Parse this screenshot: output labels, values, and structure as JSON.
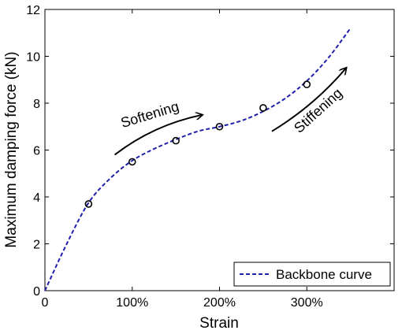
{
  "chart_data": {
    "type": "line",
    "title": "",
    "xlabel": "Strain",
    "ylabel": "Maximum damping force (kN)",
    "xlim": [
      0,
      4.0
    ],
    "ylim": [
      0,
      12
    ],
    "grid": false,
    "x_ticks": [
      {
        "value": 0,
        "label": "0"
      },
      {
        "value": 1,
        "label": "100%"
      },
      {
        "value": 2,
        "label": "200%"
      },
      {
        "value": 3,
        "label": "300%"
      }
    ],
    "y_ticks": [
      {
        "value": 0,
        "label": "0"
      },
      {
        "value": 2,
        "label": "2"
      },
      {
        "value": 4,
        "label": "4"
      },
      {
        "value": 6,
        "label": "6"
      },
      {
        "value": 8,
        "label": "8"
      },
      {
        "value": 10,
        "label": "10"
      },
      {
        "value": 12,
        "label": "12"
      }
    ],
    "series": [
      {
        "name": "Backbone curve",
        "style": "dashed",
        "color": "#1f1fa8",
        "x": [
          0,
          0.25,
          0.5,
          0.75,
          1.0,
          1.25,
          1.5,
          1.75,
          2.0,
          2.25,
          2.5,
          2.75,
          3.0,
          3.25,
          3.5
        ],
        "y": [
          0,
          2.0,
          3.75,
          4.8,
          5.55,
          6.05,
          6.45,
          6.8,
          7.0,
          7.25,
          7.65,
          8.2,
          8.95,
          9.95,
          11.2
        ]
      },
      {
        "name": "",
        "style": "markers",
        "marker": "circle",
        "color": "#000000",
        "x": [
          0.5,
          1.0,
          1.5,
          2.0,
          2.5,
          3.0
        ],
        "y": [
          3.7,
          5.5,
          6.4,
          7.0,
          7.8,
          8.8
        ]
      }
    ],
    "annotations": [
      {
        "text": "Softening",
        "rotation": -17,
        "from": [
          0.8,
          5.8
        ],
        "to": [
          1.8,
          7.5
        ]
      },
      {
        "text": "Stiffening",
        "rotation": -42,
        "from": [
          2.6,
          6.8
        ],
        "to": [
          3.45,
          9.5
        ]
      }
    ],
    "legend": {
      "position": "bottom-right",
      "entries": [
        "Backbone curve"
      ]
    }
  }
}
